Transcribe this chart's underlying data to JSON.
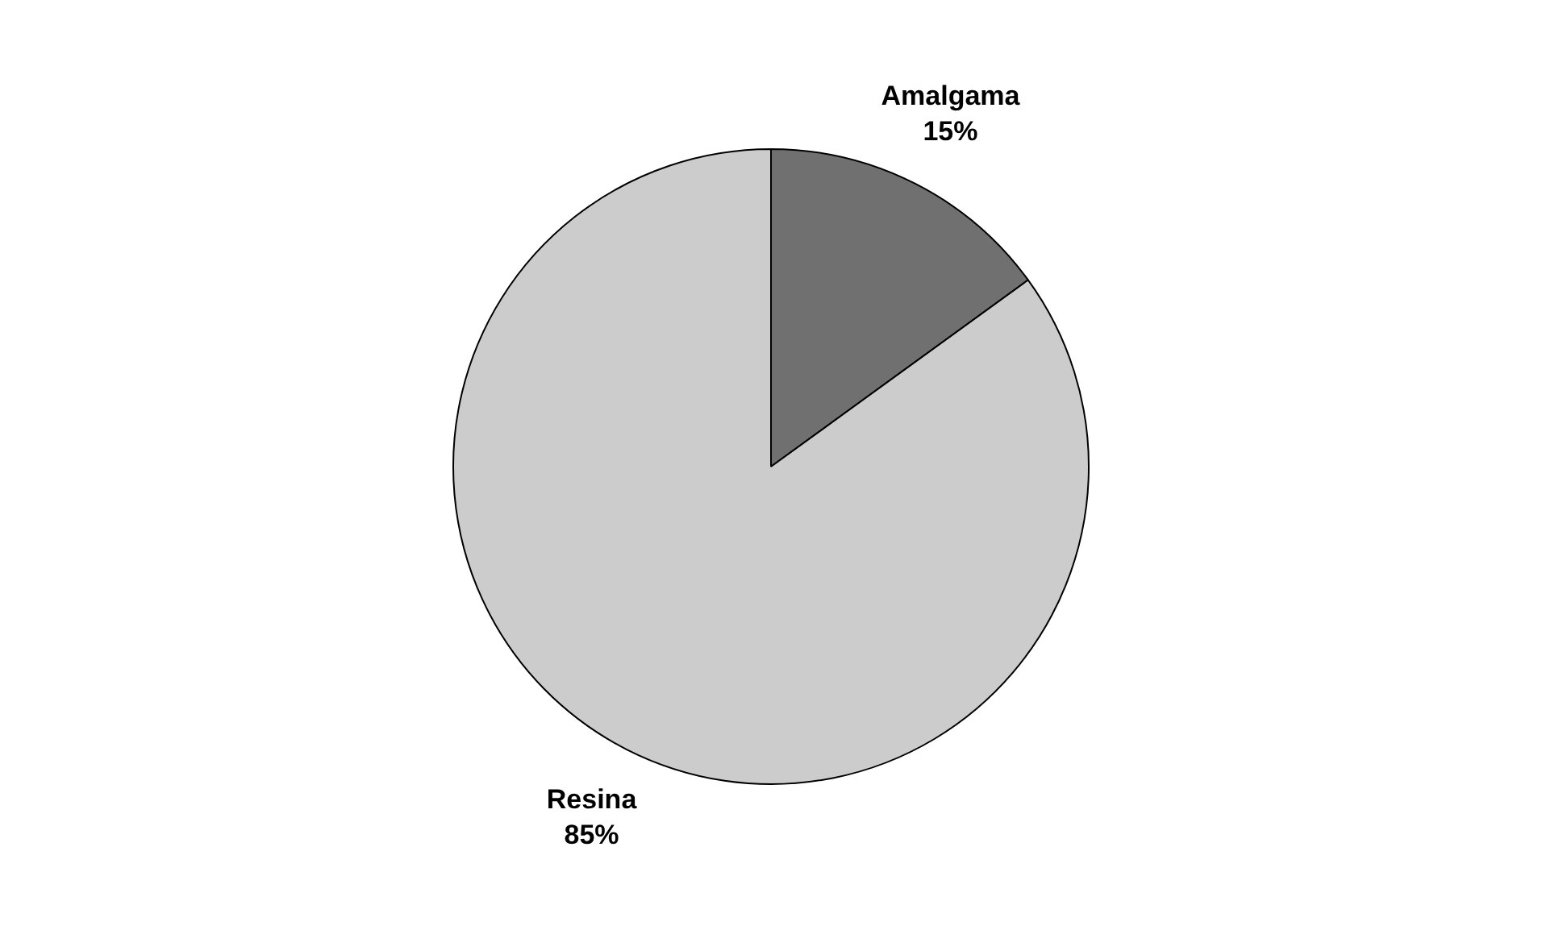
{
  "chart_data": {
    "type": "pie",
    "categories": [
      "Amalgama",
      "Resina"
    ],
    "values": [
      15,
      85
    ],
    "colors": [
      "#707070",
      "#cccccc"
    ],
    "value_labels": [
      "15%",
      "85%"
    ]
  }
}
